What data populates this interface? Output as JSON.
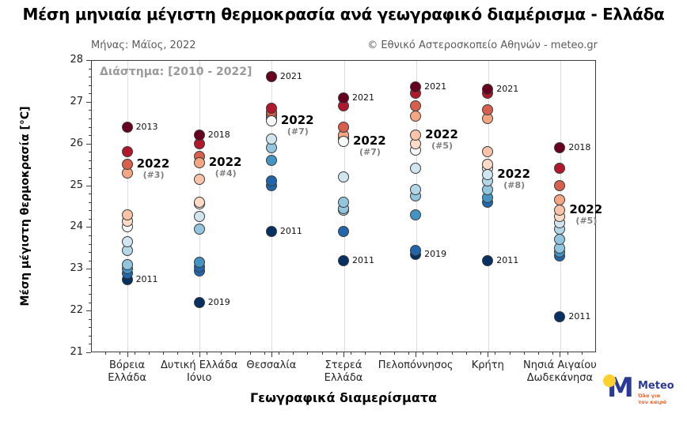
{
  "title": "Μέση μηνιαία μέγιστη θερμοκρασία ανά γεωγραφικό διαμέρισμα - Ελλάδα",
  "subtitle_left": "Μήνας: Μάϊος, 2022",
  "subtitle_right": "© Εθνικό Αστεροσκοπείο Αθηνών - meteo.gr",
  "range_label": "Διάστημα: [2010 - 2022]",
  "logo": {
    "brand": "Meteo",
    "tagline_line1": "Όλα για",
    "tagline_line2": "τον καιρό",
    "m_color": "#2b3a94",
    "dot_color": "#ffd02e",
    "brand_color": "#2b3a94",
    "tagline_color": "#f2632a"
  },
  "chart_data": {
    "type": "scatter",
    "title": "Μέση μηνιαία μέγιστη θερμοκρασία ανά γεωγραφικό διαμέρισμα - Ελλάδα",
    "xlabel": "Γεωγραφικά διαμερίσματα",
    "ylabel": "Μέση μέγιστη θερμοκρασία [°C]",
    "ylim": [
      21,
      28
    ],
    "yticks": [
      21,
      22,
      23,
      24,
      25,
      26,
      27,
      28
    ],
    "grid": "vertical-light",
    "legend": "none",
    "year_span": "2010-2022",
    "highlight_year": "2022",
    "columns": [
      {
        "name": "Βόρεια Ελλάδα",
        "label_lines": [
          "Βόρεια",
          "Ελλάδα"
        ],
        "points": [
          {
            "t": 26.4,
            "color": "#67001f",
            "year_label": "2013"
          },
          {
            "t": 25.8,
            "color": "#b2182b"
          },
          {
            "t": 25.5,
            "color": "#d6604d",
            "is_2022": true,
            "rank_label": "(#3)"
          },
          {
            "t": 25.3,
            "color": "#f4a582"
          },
          {
            "t": 24.3,
            "color": "#f9c3a9"
          },
          {
            "t": 24.15,
            "color": "#fddbc7"
          },
          {
            "t": 24.0,
            "color": "#f7f7f7"
          },
          {
            "t": 23.65,
            "color": "#d1e5f0"
          },
          {
            "t": 23.45,
            "color": "#b4d7e8"
          },
          {
            "t": 23.1,
            "color": "#92c5de"
          },
          {
            "t": 23.0,
            "color": "#4393c3"
          },
          {
            "t": 22.9,
            "color": "#2166ac"
          },
          {
            "t": 22.75,
            "color": "#053061",
            "year_label": "2011"
          }
        ]
      },
      {
        "name": "Δυτική Ελλάδα Ιόνιο",
        "label_lines": [
          "Δυτική Ελλάδα",
          "Ιόνιο"
        ],
        "points": [
          {
            "t": 26.2,
            "color": "#67001f",
            "year_label": "2018"
          },
          {
            "t": 26.0,
            "color": "#b2182b"
          },
          {
            "t": 25.7,
            "color": "#d6604d"
          },
          {
            "t": 25.55,
            "color": "#f4a582",
            "is_2022": true,
            "rank_label": "(#4)"
          },
          {
            "t": 25.15,
            "color": "#f9c3a9"
          },
          {
            "t": 24.6,
            "color": "#fddbc7"
          },
          {
            "t": 24.55,
            "color": "#f7f7f7"
          },
          {
            "t": 24.25,
            "color": "#d1e5f0"
          },
          {
            "t": 23.95,
            "color": "#92c5de"
          },
          {
            "t": 23.15,
            "color": "#4393c3"
          },
          {
            "t": 23.05,
            "color": "#2166ac"
          },
          {
            "t": 22.95,
            "color": "#2166ac"
          },
          {
            "t": 22.2,
            "color": "#053061",
            "year_label": "2019"
          }
        ]
      },
      {
        "name": "Θεσσαλία",
        "label_lines": [
          "Θεσσαλία"
        ],
        "points": [
          {
            "t": 27.6,
            "color": "#67001f",
            "year_label": "2021"
          },
          {
            "t": 26.85,
            "color": "#b2182b"
          },
          {
            "t": 26.75,
            "color": "#d6604d"
          },
          {
            "t": 26.7,
            "color": "#f4a582"
          },
          {
            "t": 26.65,
            "color": "#f9c3a9"
          },
          {
            "t": 26.6,
            "color": "#fddbc7"
          },
          {
            "t": 26.55,
            "color": "#f7f7f7",
            "is_2022": true,
            "rank_label": "(#7)"
          },
          {
            "t": 26.1,
            "color": "#d1e5f0"
          },
          {
            "t": 25.9,
            "color": "#92c5de"
          },
          {
            "t": 25.6,
            "color": "#4393c3"
          },
          {
            "t": 25.1,
            "color": "#2166ac"
          },
          {
            "t": 25.0,
            "color": "#2166ac"
          },
          {
            "t": 23.9,
            "color": "#053061",
            "year_label": "2011"
          }
        ]
      },
      {
        "name": "Στερεά Ελλάδα",
        "label_lines": [
          "Στερεά",
          "Ελλάδα"
        ],
        "points": [
          {
            "t": 27.1,
            "color": "#67001f",
            "year_label": "2021"
          },
          {
            "t": 26.9,
            "color": "#b2182b"
          },
          {
            "t": 26.4,
            "color": "#d6604d"
          },
          {
            "t": 26.2,
            "color": "#f4a582"
          },
          {
            "t": 26.15,
            "color": "#f9c3a9"
          },
          {
            "t": 26.1,
            "color": "#fddbc7"
          },
          {
            "t": 26.05,
            "color": "#f7f7f7",
            "is_2022": true,
            "rank_label": "(#7)"
          },
          {
            "t": 25.2,
            "color": "#d1e5f0"
          },
          {
            "t": 24.6,
            "color": "#92c5de"
          },
          {
            "t": 24.45,
            "color": "#92c5de"
          },
          {
            "t": 24.4,
            "color": "#b4d7e8"
          },
          {
            "t": 23.9,
            "color": "#2166ac"
          },
          {
            "t": 23.2,
            "color": "#053061",
            "year_label": "2011"
          }
        ]
      },
      {
        "name": "Πελοπόννησος",
        "label_lines": [
          "Πελοπόννησος"
        ],
        "points": [
          {
            "t": 27.35,
            "color": "#67001f",
            "year_label": "2021"
          },
          {
            "t": 27.2,
            "color": "#b2182b"
          },
          {
            "t": 26.9,
            "color": "#d6604d"
          },
          {
            "t": 26.65,
            "color": "#f4a582"
          },
          {
            "t": 26.2,
            "color": "#f9c3a9",
            "is_2022": true,
            "rank_label": "(#5)"
          },
          {
            "t": 26.0,
            "color": "#fddbc7"
          },
          {
            "t": 25.85,
            "color": "#f7f7f7"
          },
          {
            "t": 25.4,
            "color": "#d1e5f0"
          },
          {
            "t": 24.9,
            "color": "#b4d7e8"
          },
          {
            "t": 24.75,
            "color": "#92c5de"
          },
          {
            "t": 24.3,
            "color": "#4393c3"
          },
          {
            "t": 23.45,
            "color": "#2166ac"
          },
          {
            "t": 23.35,
            "color": "#053061",
            "year_label": "2019"
          }
        ]
      },
      {
        "name": "Κρήτη",
        "label_lines": [
          "Κρήτη"
        ],
        "points": [
          {
            "t": 27.3,
            "color": "#67001f",
            "year_label": "2021"
          },
          {
            "t": 27.2,
            "color": "#b2182b"
          },
          {
            "t": 26.8,
            "color": "#d6604d"
          },
          {
            "t": 26.6,
            "color": "#f4a582"
          },
          {
            "t": 25.8,
            "color": "#f9c3a9"
          },
          {
            "t": 25.5,
            "color": "#fddbc7"
          },
          {
            "t": 25.4,
            "color": "#f7f7f7"
          },
          {
            "t": 25.25,
            "color": "#d1e5f0",
            "is_2022": true,
            "rank_label": "(#8)"
          },
          {
            "t": 25.1,
            "color": "#b4d7e8"
          },
          {
            "t": 24.9,
            "color": "#92c5de"
          },
          {
            "t": 24.7,
            "color": "#4393c3"
          },
          {
            "t": 24.6,
            "color": "#2166ac"
          },
          {
            "t": 23.2,
            "color": "#053061",
            "year_label": "2011"
          }
        ]
      },
      {
        "name": "Νησιά Αιγαίου Δωδεκάνησα",
        "label_lines": [
          "Νησιά Αιγαίου",
          "Δωδεκάνησα"
        ],
        "points": [
          {
            "t": 25.9,
            "color": "#67001f",
            "year_label": "2018"
          },
          {
            "t": 25.4,
            "color": "#b2182b"
          },
          {
            "t": 25.0,
            "color": "#d6604d"
          },
          {
            "t": 24.65,
            "color": "#f4a582"
          },
          {
            "t": 24.4,
            "color": "#f9c3a9",
            "is_2022": true,
            "rank_label": "(#5)"
          },
          {
            "t": 24.25,
            "color": "#fddbc7"
          },
          {
            "t": 24.1,
            "color": "#d1e5f0"
          },
          {
            "t": 23.95,
            "color": "#b4d7e8"
          },
          {
            "t": 23.7,
            "color": "#92c5de"
          },
          {
            "t": 23.5,
            "color": "#92c5de"
          },
          {
            "t": 23.4,
            "color": "#4393c3"
          },
          {
            "t": 23.3,
            "color": "#2166ac"
          },
          {
            "t": 21.85,
            "color": "#053061",
            "year_label": "2011"
          }
        ]
      }
    ]
  }
}
